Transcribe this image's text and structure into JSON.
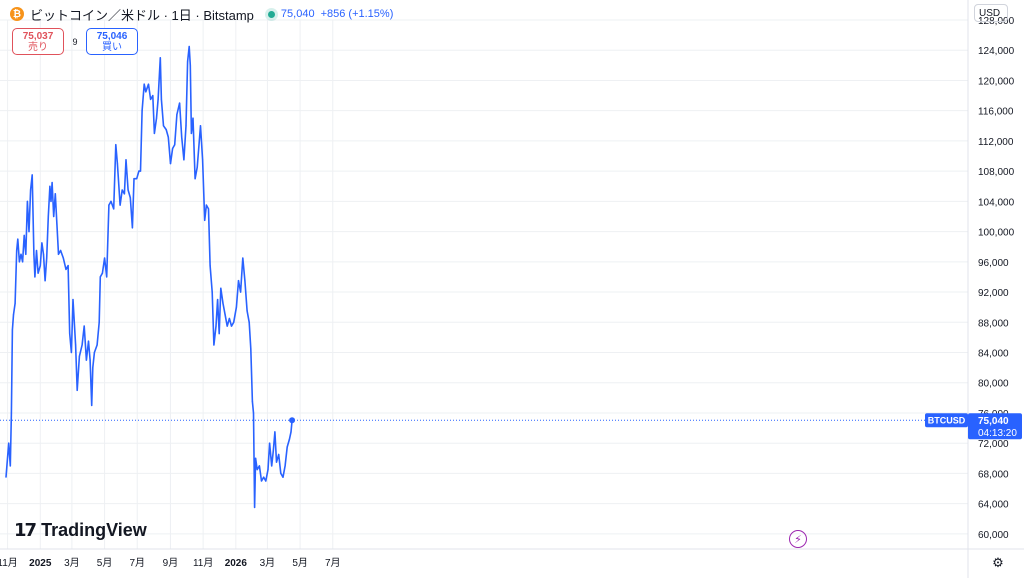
{
  "header": {
    "coin_icon": "₿",
    "symbol_title": "ビットコイン／米ドル · 1日 · Bitstamp",
    "price": "75,040",
    "change": "+856 (+1.15%)"
  },
  "trade": {
    "sell_price": "75,037",
    "sell_label": "売り",
    "spread": "9",
    "buy_price": "75,046",
    "buy_label": "買い"
  },
  "currency": "USD",
  "logo": {
    "mark": "17",
    "text": "TradingView"
  },
  "icons": {
    "flash": "flash-icon",
    "settings": "gear-icon"
  },
  "colors": {
    "line": "#2962ff",
    "grid": "#eef0f3",
    "axis_text": "#131722",
    "label_bg": "#2962ff",
    "sell": "#e0525b"
  },
  "chart_data": {
    "type": "line",
    "symbol": "BTCUSD",
    "last_price": "75,040",
    "countdown": "04:13:20",
    "ylim": [
      58000,
      128000
    ],
    "y_ticks": [
      60000,
      64000,
      68000,
      72000,
      76000,
      80000,
      84000,
      88000,
      92000,
      96000,
      100000,
      104000,
      108000,
      112000,
      116000,
      120000,
      124000,
      128000
    ],
    "y_tick_labels": [
      "60,000",
      "64,000",
      "68,000",
      "72,000",
      "76,000",
      "80,000",
      "84,000",
      "88,000",
      "92,000",
      "96,000",
      "100,000",
      "104,000",
      "108,000",
      "112,000",
      "116,000",
      "120,000",
      "124,000",
      "128,000"
    ],
    "x_start": "2024-10-29",
    "x_ticks": [
      {
        "date": "2024-11-01",
        "label": "11月",
        "bold": false
      },
      {
        "date": "2025-01-01",
        "label": "2025",
        "bold": true
      },
      {
        "date": "2025-03-01",
        "label": "3月",
        "bold": false
      },
      {
        "date": "2025-05-01",
        "label": "5月",
        "bold": false
      },
      {
        "date": "2025-07-01",
        "label": "7月",
        "bold": false
      },
      {
        "date": "2025-09-01",
        "label": "9月",
        "bold": false
      },
      {
        "date": "2025-11-01",
        "label": "11月",
        "bold": false
      },
      {
        "date": "2026-01-01",
        "label": "2026",
        "bold": true
      },
      {
        "date": "2026-03-01",
        "label": "3月",
        "bold": false
      },
      {
        "date": "2026-05-01",
        "label": "5月",
        "bold": false
      },
      {
        "date": "2026-07-01",
        "label": "7月",
        "bold": false
      }
    ],
    "series": [
      {
        "points": [
          [
            "2024-10-29",
            67500
          ],
          [
            "2024-11-03",
            72000
          ],
          [
            "2024-11-06",
            69000
          ],
          [
            "2024-11-08",
            76000
          ],
          [
            "2024-11-10",
            87000
          ],
          [
            "2024-11-12",
            89000
          ],
          [
            "2024-11-15",
            90500
          ],
          [
            "2024-11-18",
            97500
          ],
          [
            "2024-11-20",
            99000
          ],
          [
            "2024-11-23",
            96000
          ],
          [
            "2024-11-26",
            97000
          ],
          [
            "2024-11-29",
            96000
          ],
          [
            "2024-12-02",
            99500
          ],
          [
            "2024-12-05",
            97000
          ],
          [
            "2024-12-08",
            104000
          ],
          [
            "2024-12-11",
            100000
          ],
          [
            "2024-12-14",
            105500
          ],
          [
            "2024-12-17",
            107500
          ],
          [
            "2024-12-20",
            97000
          ],
          [
            "2024-12-22",
            94000
          ],
          [
            "2024-12-25",
            97500
          ],
          [
            "2024-12-28",
            94500
          ],
          [
            "2025-01-01",
            95500
          ],
          [
            "2025-01-04",
            98500
          ],
          [
            "2025-01-07",
            97000
          ],
          [
            "2025-01-10",
            93500
          ],
          [
            "2025-01-13",
            96500
          ],
          [
            "2025-01-16",
            102000
          ],
          [
            "2025-01-19",
            106000
          ],
          [
            "2025-01-21",
            104000
          ],
          [
            "2025-01-23",
            106500
          ],
          [
            "2025-01-26",
            102000
          ],
          [
            "2025-01-29",
            105000
          ],
          [
            "2025-02-01",
            101000
          ],
          [
            "2025-02-04",
            97000
          ],
          [
            "2025-02-08",
            97500
          ],
          [
            "2025-02-13",
            96500
          ],
          [
            "2025-02-18",
            95000
          ],
          [
            "2025-02-22",
            95500
          ],
          [
            "2025-02-25",
            86500
          ],
          [
            "2025-02-28",
            84000
          ],
          [
            "2025-03-03",
            91000
          ],
          [
            "2025-03-08",
            85000
          ],
          [
            "2025-03-11",
            79000
          ],
          [
            "2025-03-15",
            83500
          ],
          [
            "2025-03-20",
            85000
          ],
          [
            "2025-03-24",
            87500
          ],
          [
            "2025-03-28",
            83000
          ],
          [
            "2025-04-01",
            85500
          ],
          [
            "2025-04-04",
            83000
          ],
          [
            "2025-04-07",
            77000
          ],
          [
            "2025-04-09",
            82000
          ],
          [
            "2025-04-12",
            84000
          ],
          [
            "2025-04-17",
            85000
          ],
          [
            "2025-04-21",
            88000
          ],
          [
            "2025-04-23",
            94000
          ],
          [
            "2025-04-27",
            94500
          ],
          [
            "2025-05-01",
            96500
          ],
          [
            "2025-05-05",
            94000
          ],
          [
            "2025-05-09",
            103500
          ],
          [
            "2025-05-13",
            104000
          ],
          [
            "2025-05-18",
            103000
          ],
          [
            "2025-05-22",
            111500
          ],
          [
            "2025-05-25",
            109000
          ],
          [
            "2025-05-30",
            103500
          ],
          [
            "2025-06-03",
            105500
          ],
          [
            "2025-06-07",
            105000
          ],
          [
            "2025-06-10",
            109500
          ],
          [
            "2025-06-14",
            105500
          ],
          [
            "2025-06-18",
            104500
          ],
          [
            "2025-06-22",
            100500
          ],
          [
            "2025-06-25",
            107000
          ],
          [
            "2025-06-30",
            107000
          ],
          [
            "2025-07-04",
            108000
          ],
          [
            "2025-07-07",
            108000
          ],
          [
            "2025-07-10",
            116000
          ],
          [
            "2025-07-14",
            119500
          ],
          [
            "2025-07-17",
            118500
          ],
          [
            "2025-07-22",
            119500
          ],
          [
            "2025-07-26",
            117500
          ],
          [
            "2025-07-30",
            118000
          ],
          [
            "2025-08-02",
            113000
          ],
          [
            "2025-08-06",
            115000
          ],
          [
            "2025-08-09",
            117500
          ],
          [
            "2025-08-13",
            123000
          ],
          [
            "2025-08-15",
            117500
          ],
          [
            "2025-08-19",
            114000
          ],
          [
            "2025-08-24",
            113500
          ],
          [
            "2025-08-28",
            112500
          ],
          [
            "2025-09-01",
            109000
          ],
          [
            "2025-09-05",
            111000
          ],
          [
            "2025-09-09",
            111500
          ],
          [
            "2025-09-13",
            115500
          ],
          [
            "2025-09-18",
            117000
          ],
          [
            "2025-09-22",
            112500
          ],
          [
            "2025-09-26",
            109500
          ],
          [
            "2025-09-30",
            114000
          ],
          [
            "2025-10-03",
            122500
          ],
          [
            "2025-10-06",
            124500
          ],
          [
            "2025-10-08",
            122000
          ],
          [
            "2025-10-10",
            113000
          ],
          [
            "2025-10-13",
            115000
          ],
          [
            "2025-10-17",
            107000
          ],
          [
            "2025-10-21",
            108500
          ],
          [
            "2025-10-27",
            114000
          ],
          [
            "2025-10-31",
            109500
          ],
          [
            "2025-11-04",
            101500
          ],
          [
            "2025-11-07",
            103500
          ],
          [
            "2025-11-11",
            103000
          ],
          [
            "2025-11-14",
            95500
          ],
          [
            "2025-11-18",
            92000
          ],
          [
            "2025-11-21",
            85000
          ],
          [
            "2025-11-25",
            87500
          ],
          [
            "2025-11-28",
            91000
          ],
          [
            "2025-12-01",
            86500
          ],
          [
            "2025-12-04",
            92500
          ],
          [
            "2025-12-08",
            90500
          ],
          [
            "2025-12-12",
            89000
          ],
          [
            "2025-12-16",
            87500
          ],
          [
            "2025-12-20",
            88500
          ],
          [
            "2025-12-24",
            87500
          ],
          [
            "2025-12-28",
            88000
          ],
          [
            "2026-01-02",
            90000
          ],
          [
            "2026-01-06",
            93500
          ],
          [
            "2026-01-10",
            92000
          ],
          [
            "2026-01-14",
            96500
          ],
          [
            "2026-01-18",
            93500
          ],
          [
            "2026-01-22",
            89500
          ],
          [
            "2026-01-26",
            88000
          ],
          [
            "2026-01-29",
            84500
          ],
          [
            "2026-02-01",
            77500
          ],
          [
            "2026-02-03",
            76000
          ],
          [
            "2026-02-05",
            63500
          ],
          [
            "2026-02-07",
            70000
          ],
          [
            "2026-02-10",
            68500
          ],
          [
            "2026-02-14",
            69000
          ],
          [
            "2026-02-18",
            67000
          ],
          [
            "2026-02-22",
            67500
          ],
          [
            "2026-02-26",
            67000
          ],
          [
            "2026-03-02",
            68500
          ],
          [
            "2026-03-05",
            72000
          ],
          [
            "2026-03-09",
            69000
          ],
          [
            "2026-03-12",
            71000
          ],
          [
            "2026-03-15",
            73500
          ],
          [
            "2026-03-18",
            69500
          ],
          [
            "2026-03-22",
            70500
          ],
          [
            "2026-03-26",
            68000
          ],
          [
            "2026-03-30",
            67500
          ],
          [
            "2026-04-03",
            69000
          ],
          [
            "2026-04-07",
            71500
          ],
          [
            "2026-04-11",
            72500
          ],
          [
            "2026-04-14",
            73500
          ],
          [
            "2026-04-16",
            75040
          ]
        ]
      }
    ]
  }
}
